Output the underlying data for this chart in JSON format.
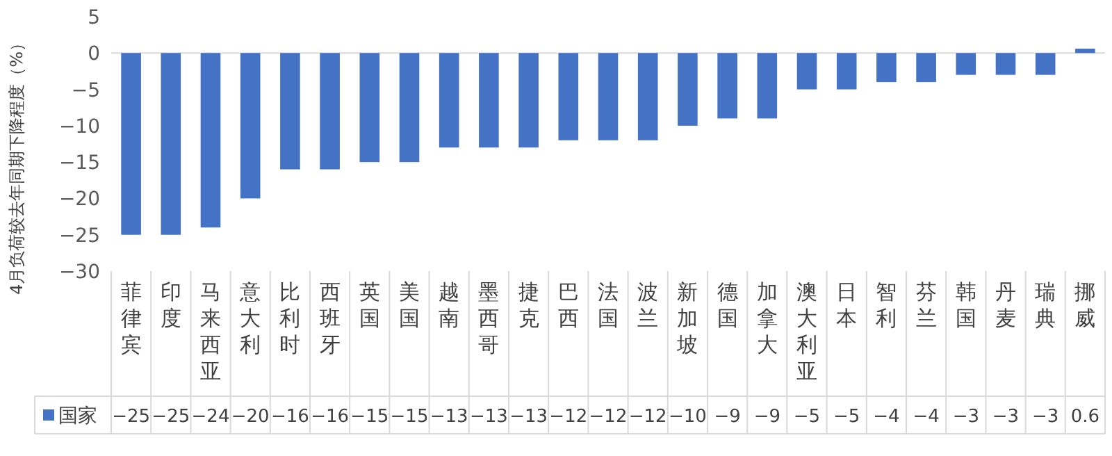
{
  "chart_data": {
    "type": "bar",
    "ylabel": "4月负荷较去年同期下降程度（%）",
    "categories": [
      "菲律宾",
      "印度",
      "马来西亚",
      "意大利",
      "比利时",
      "西班牙",
      "英国",
      "美国",
      "越南",
      "墨西哥",
      "捷克",
      "巴西",
      "法国",
      "波兰",
      "新加坡",
      "德国",
      "加拿大",
      "澳大利亚",
      "日本",
      "智利",
      "芬兰",
      "韩国",
      "丹麦",
      "瑞典",
      "挪威"
    ],
    "series": [
      {
        "name": "国家",
        "color": "#4472c4",
        "values": [
          -25,
          -25,
          -24,
          -20,
          -16,
          -16,
          -15,
          -15,
          -13,
          -13,
          -13,
          -12,
          -12,
          -12,
          -10,
          -9,
          -9,
          -5,
          -5,
          -4,
          -4,
          -3,
          -3,
          -3,
          0.6
        ]
      }
    ],
    "ylim": [
      -30,
      5
    ],
    "yticks": [
      -30,
      -25,
      -20,
      -15,
      -10,
      -5,
      0,
      5
    ],
    "legend": "bottom",
    "data_labels": true
  }
}
